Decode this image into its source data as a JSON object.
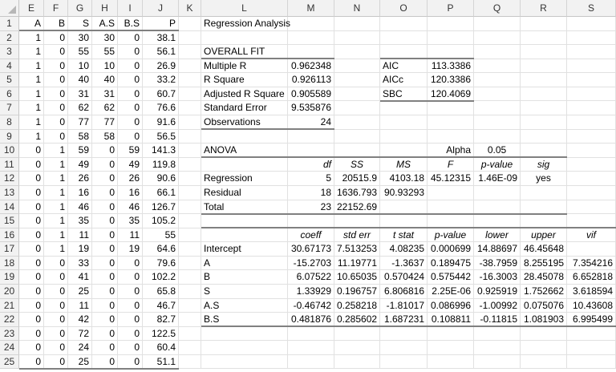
{
  "columns": [
    "E",
    "F",
    "G",
    "H",
    "I",
    "J",
    "K",
    "L",
    "M",
    "N",
    "O",
    "P",
    "Q",
    "R",
    "S"
  ],
  "rows": [
    "1",
    "2",
    "3",
    "4",
    "5",
    "6",
    "7",
    "8",
    "9",
    "10",
    "11",
    "12",
    "13",
    "14",
    "15",
    "16",
    "17",
    "18",
    "19",
    "20",
    "21",
    "22",
    "23",
    "24",
    "25"
  ],
  "data_table": {
    "headers": [
      "A",
      "B",
      "S",
      "A.S",
      "B.S",
      "P"
    ],
    "rows": [
      [
        "1",
        "0",
        "30",
        "30",
        "0",
        "38.1"
      ],
      [
        "1",
        "0",
        "55",
        "55",
        "0",
        "56.1"
      ],
      [
        "1",
        "0",
        "10",
        "10",
        "0",
        "26.9"
      ],
      [
        "1",
        "0",
        "40",
        "40",
        "0",
        "33.2"
      ],
      [
        "1",
        "0",
        "31",
        "31",
        "0",
        "60.7"
      ],
      [
        "1",
        "0",
        "62",
        "62",
        "0",
        "76.6"
      ],
      [
        "1",
        "0",
        "77",
        "77",
        "0",
        "91.6"
      ],
      [
        "1",
        "0",
        "58",
        "58",
        "0",
        "56.5"
      ],
      [
        "0",
        "1",
        "59",
        "0",
        "59",
        "141.3"
      ],
      [
        "0",
        "1",
        "49",
        "0",
        "49",
        "119.8"
      ],
      [
        "0",
        "1",
        "26",
        "0",
        "26",
        "90.6"
      ],
      [
        "0",
        "1",
        "16",
        "0",
        "16",
        "66.1"
      ],
      [
        "0",
        "1",
        "46",
        "0",
        "46",
        "126.7"
      ],
      [
        "0",
        "1",
        "35",
        "0",
        "35",
        "105.2"
      ],
      [
        "0",
        "1",
        "11",
        "0",
        "11",
        "55"
      ],
      [
        "0",
        "1",
        "19",
        "0",
        "19",
        "64.6"
      ],
      [
        "0",
        "0",
        "33",
        "0",
        "0",
        "79.6"
      ],
      [
        "0",
        "0",
        "41",
        "0",
        "0",
        "102.2"
      ],
      [
        "0",
        "0",
        "25",
        "0",
        "0",
        "65.8"
      ],
      [
        "0",
        "0",
        "11",
        "0",
        "0",
        "46.7"
      ],
      [
        "0",
        "0",
        "42",
        "0",
        "0",
        "82.7"
      ],
      [
        "0",
        "0",
        "72",
        "0",
        "0",
        "122.5"
      ],
      [
        "0",
        "0",
        "24",
        "0",
        "0",
        "60.4"
      ],
      [
        "0",
        "0",
        "25",
        "0",
        "0",
        "51.1"
      ]
    ]
  },
  "regression": {
    "title": "Regression Analysis",
    "overall_fit": {
      "title": "OVERALL FIT",
      "rows": [
        [
          "Multiple R",
          "0.962348"
        ],
        [
          "R Square",
          "0.926113"
        ],
        [
          "Adjusted R Square",
          "0.905589"
        ],
        [
          "Standard Error",
          "9.535876"
        ],
        [
          "Observations",
          "24"
        ]
      ]
    },
    "info_criteria": [
      [
        "AIC",
        "113.3386"
      ],
      [
        "AICc",
        "120.3386"
      ],
      [
        "SBC",
        "120.4069"
      ]
    ],
    "anova": {
      "title": "ANOVA",
      "alpha_label": "Alpha",
      "alpha_value": "0.05",
      "headers": [
        "df",
        "SS",
        "MS",
        "F",
        "p-value",
        "sig"
      ],
      "rows": [
        [
          "Regression",
          "5",
          "20515.9",
          "4103.18",
          "45.12315",
          "1.46E-09",
          "yes"
        ],
        [
          "Residual",
          "18",
          "1636.793",
          "90.93293",
          "",
          "",
          ""
        ],
        [
          "Total",
          "23",
          "22152.69",
          "",
          "",
          "",
          ""
        ]
      ]
    },
    "coefficients": {
      "headers": [
        "coeff",
        "std err",
        "t stat",
        "p-value",
        "lower",
        "upper",
        "vif"
      ],
      "rows": [
        [
          "Intercept",
          "30.67173",
          "7.513253",
          "4.08235",
          "0.000699",
          "14.88697",
          "46.45648",
          ""
        ],
        [
          "A",
          "-15.2703",
          "11.19771",
          "-1.3637",
          "0.189475",
          "-38.7959",
          "8.255195",
          "7.354216"
        ],
        [
          "B",
          "6.07522",
          "10.65035",
          "0.570424",
          "0.575442",
          "-16.3003",
          "28.45078",
          "6.652818"
        ],
        [
          "S",
          "1.33929",
          "0.196757",
          "6.806816",
          "2.25E-06",
          "0.925919",
          "1.752662",
          "3.618594"
        ],
        [
          "A.S",
          "-0.46742",
          "0.258218",
          "-1.81017",
          "0.086996",
          "-1.00992",
          "0.075076",
          "10.43608"
        ],
        [
          "B.S",
          "0.481876",
          "0.285602",
          "1.687231",
          "0.108811",
          "-0.11815",
          "1.081903",
          "6.995499"
        ]
      ]
    }
  }
}
